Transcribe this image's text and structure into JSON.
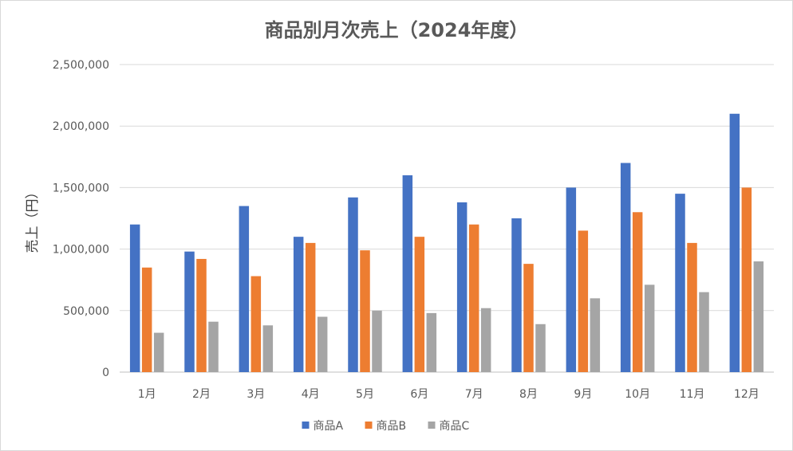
{
  "chart_data": {
    "type": "bar",
    "title": "商品別月次売上（2024年度）",
    "xlabel": "",
    "ylabel": "売上（円）",
    "ylim": [
      0,
      2500000
    ],
    "yticks": [
      0,
      500000,
      1000000,
      1500000,
      2000000,
      2500000
    ],
    "ytick_labels": [
      "0",
      "500,000",
      "1,000,000",
      "1,500,000",
      "2,000,000",
      "2,500,000"
    ],
    "grid": true,
    "legend_position": "bottom",
    "categories": [
      "1月",
      "2月",
      "3月",
      "4月",
      "5月",
      "6月",
      "7月",
      "8月",
      "9月",
      "10月",
      "11月",
      "12月"
    ],
    "series": [
      {
        "name": "商品A",
        "color": "#4472C4",
        "values": [
          1200000,
          980000,
          1350000,
          1100000,
          1420000,
          1600000,
          1380000,
          1250000,
          1500000,
          1700000,
          1450000,
          2100000
        ]
      },
      {
        "name": "商品B",
        "color": "#ED7D31",
        "values": [
          850000,
          920000,
          780000,
          1050000,
          990000,
          1100000,
          1200000,
          880000,
          1150000,
          1300000,
          1050000,
          1500000
        ]
      },
      {
        "name": "商品C",
        "color": "#A5A5A5",
        "values": [
          320000,
          410000,
          380000,
          450000,
          500000,
          480000,
          520000,
          390000,
          600000,
          710000,
          650000,
          900000
        ]
      }
    ]
  }
}
